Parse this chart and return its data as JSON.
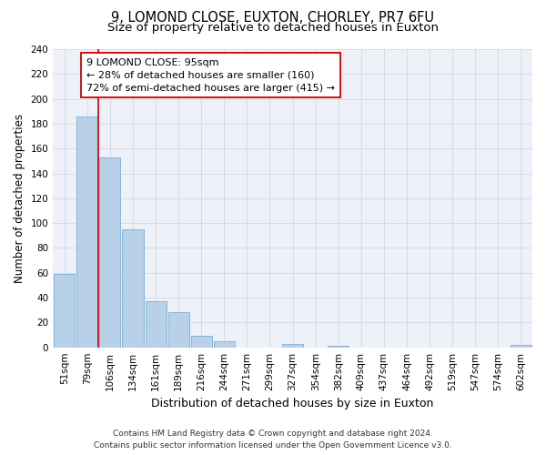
{
  "title": "9, LOMOND CLOSE, EUXTON, CHORLEY, PR7 6FU",
  "subtitle": "Size of property relative to detached houses in Euxton",
  "xlabel": "Distribution of detached houses by size in Euxton",
  "ylabel": "Number of detached properties",
  "bar_labels": [
    "51sqm",
    "79sqm",
    "106sqm",
    "134sqm",
    "161sqm",
    "189sqm",
    "216sqm",
    "244sqm",
    "271sqm",
    "299sqm",
    "327sqm",
    "354sqm",
    "382sqm",
    "409sqm",
    "437sqm",
    "464sqm",
    "492sqm",
    "519sqm",
    "547sqm",
    "574sqm",
    "602sqm"
  ],
  "bar_values": [
    59,
    186,
    153,
    95,
    37,
    28,
    9,
    5,
    0,
    0,
    3,
    0,
    1,
    0,
    0,
    0,
    0,
    0,
    0,
    0,
    2
  ],
  "bar_color": "#b8d0e8",
  "bar_edge_color": "#7aafd4",
  "ylim": [
    0,
    240
  ],
  "yticks": [
    0,
    20,
    40,
    60,
    80,
    100,
    120,
    140,
    160,
    180,
    200,
    220,
    240
  ],
  "property_line_x": 1.5,
  "annotation_text_line1": "9 LOMOND CLOSE: 95sqm",
  "annotation_text_line2": "← 28% of detached houses are smaller (160)",
  "annotation_text_line3": "72% of semi-detached houses are larger (415) →",
  "red_line_color": "#cc0000",
  "footer_line1": "Contains HM Land Registry data © Crown copyright and database right 2024.",
  "footer_line2": "Contains public sector information licensed under the Open Government Licence v3.0.",
  "background_color": "#ffffff",
  "plot_background_color": "#eef2f8",
  "grid_color": "#d0d8e4",
  "title_fontsize": 10.5,
  "subtitle_fontsize": 9.5,
  "xlabel_fontsize": 9,
  "ylabel_fontsize": 8.5,
  "tick_fontsize": 7.5,
  "annotation_fontsize": 8,
  "footer_fontsize": 6.5
}
